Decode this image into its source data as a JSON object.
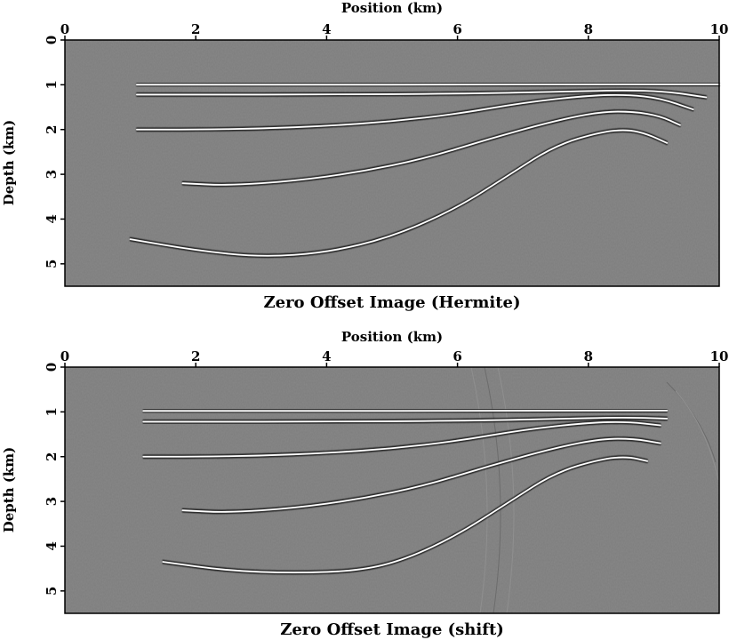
{
  "chart_data": [
    {
      "type": "heatmap",
      "title": "Zero Offset Image (Hermite)",
      "xlabel": "Position (km)",
      "ylabel": "Depth (km)",
      "xlim": [
        0,
        10
      ],
      "ylim": [
        0,
        5.5
      ],
      "x_ticks": [
        "0",
        "2",
        "4",
        "6",
        "8",
        "10"
      ],
      "y_ticks": [
        "0",
        "1",
        "2",
        "3",
        "4",
        "5"
      ],
      "x_axis_position": "top",
      "y_axis_inverted": true,
      "background_color": "#7d7d7d",
      "reflectors": [
        {
          "x": [
            1.1,
            2,
            4,
            6,
            8,
            9.2,
            10
          ],
          "y": [
            1.0,
            1.0,
            1.0,
            1.0,
            0.99,
            0.99,
            0.99
          ]
        },
        {
          "x": [
            1.1,
            2,
            4,
            6,
            7.5,
            8.5,
            9.2,
            9.8
          ],
          "y": [
            1.22,
            1.22,
            1.22,
            1.2,
            1.16,
            1.12,
            1.15,
            1.28
          ]
        },
        {
          "x": [
            1.1,
            2,
            3,
            4,
            5,
            6,
            7,
            8,
            8.6,
            9.1,
            9.6
          ],
          "y": [
            2.0,
            2.0,
            1.98,
            1.92,
            1.82,
            1.65,
            1.4,
            1.24,
            1.22,
            1.3,
            1.55
          ]
        },
        {
          "x": [
            1.8,
            2.5,
            3.5,
            4.5,
            5.5,
            6.5,
            7.5,
            8.2,
            8.7,
            9.1,
            9.4
          ],
          "y": [
            3.2,
            3.25,
            3.15,
            2.95,
            2.65,
            2.2,
            1.8,
            1.6,
            1.6,
            1.7,
            1.9
          ]
        },
        {
          "x": [
            1.0,
            2.0,
            3.0,
            4.0,
            5.0,
            6.0,
            6.8,
            7.5,
            8.2,
            8.6,
            8.9,
            9.2
          ],
          "y": [
            4.45,
            4.7,
            4.85,
            4.75,
            4.4,
            3.75,
            3.0,
            2.35,
            2.05,
            2.0,
            2.1,
            2.3
          ]
        }
      ]
    },
    {
      "type": "heatmap",
      "title": "Zero Offset Image (shift)",
      "xlabel": "Position (km)",
      "ylabel": "Depth (km)",
      "xlim": [
        0,
        10
      ],
      "ylim": [
        0,
        5.5
      ],
      "x_ticks": [
        "0",
        "2",
        "4",
        "6",
        "8",
        "10"
      ],
      "y_ticks": [
        "0",
        "1",
        "2",
        "3",
        "4",
        "5"
      ],
      "x_axis_position": "top",
      "y_axis_inverted": true,
      "background_color": "#7d7d7d",
      "reflectors": [
        {
          "x": [
            1.2,
            2,
            4,
            6,
            8,
            9.2
          ],
          "y": [
            0.98,
            0.98,
            0.98,
            0.98,
            0.97,
            0.97
          ]
        },
        {
          "x": [
            1.2,
            2,
            4,
            6,
            7.5,
            8.5,
            9.2
          ],
          "y": [
            1.22,
            1.22,
            1.22,
            1.2,
            1.16,
            1.12,
            1.15
          ]
        },
        {
          "x": [
            1.2,
            2,
            3,
            4,
            5,
            6,
            7,
            8,
            8.6,
            9.1
          ],
          "y": [
            2.0,
            2.0,
            1.98,
            1.92,
            1.82,
            1.65,
            1.4,
            1.24,
            1.22,
            1.3
          ]
        },
        {
          "x": [
            1.8,
            2.5,
            3.5,
            4.5,
            5.5,
            6.5,
            7.5,
            8.2,
            8.7,
            9.1
          ],
          "y": [
            3.2,
            3.25,
            3.15,
            2.95,
            2.65,
            2.2,
            1.8,
            1.6,
            1.6,
            1.7
          ]
        },
        {
          "x": [
            1.5,
            2.5,
            3.5,
            4.5,
            5.2,
            6.0,
            6.8,
            7.5,
            8.2,
            8.6,
            8.9
          ],
          "y": [
            4.35,
            4.55,
            4.6,
            4.55,
            4.3,
            3.75,
            3.0,
            2.35,
            2.05,
            2.0,
            2.1
          ]
        }
      ]
    }
  ]
}
